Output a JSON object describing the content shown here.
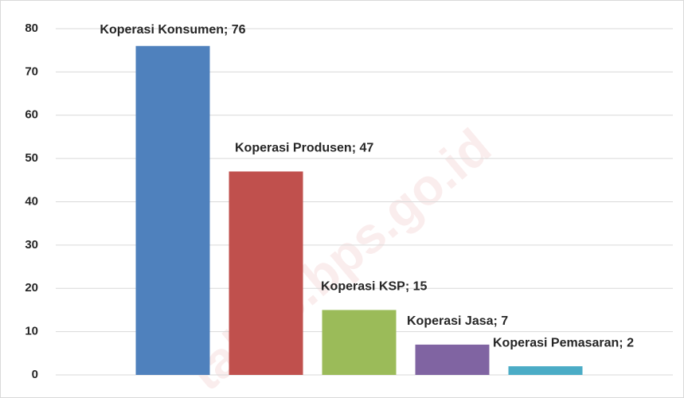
{
  "chart_data": {
    "type": "bar",
    "values": [
      76,
      47,
      15,
      7,
      2
    ],
    "value_labels": [
      "Koperasi Konsumen; 76",
      "Koperasi Produsen; 47",
      "Koperasi KSP; 15",
      "Koperasi Jasa; 7",
      "Koperasi Pemasaran; 2"
    ],
    "colors": [
      "#4f81bd",
      "#c0504d",
      "#9bbb59",
      "#8064a2",
      "#4bacc6"
    ],
    "ylim": [
      0,
      80
    ],
    "yticks": [
      0,
      10,
      20,
      30,
      40,
      50,
      60,
      70,
      80
    ],
    "grid": true
  },
  "watermark": "takab.bps.go.id"
}
